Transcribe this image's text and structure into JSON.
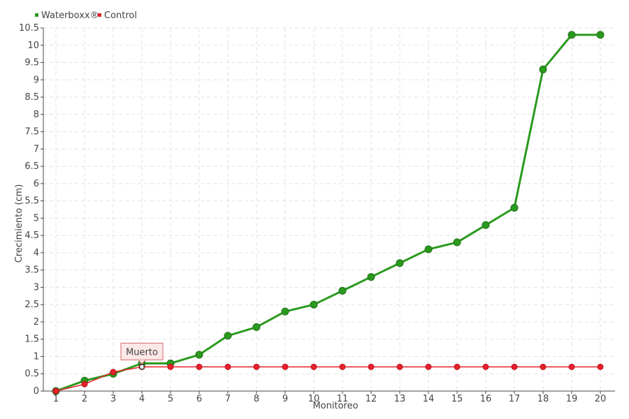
{
  "chart_data": {
    "type": "line",
    "xlabel": "Monitoreo",
    "ylabel": "Crecimiento (cm)",
    "x": [
      1,
      2,
      3,
      4,
      5,
      6,
      7,
      8,
      9,
      10,
      11,
      12,
      13,
      14,
      15,
      16,
      17,
      18,
      19,
      20
    ],
    "xticks": [
      "1",
      "2",
      "3",
      "4",
      "5",
      "6",
      "7",
      "8",
      "9",
      "10",
      "11",
      "12",
      "13",
      "14",
      "15",
      "16",
      "17",
      "18",
      "19",
      "20"
    ],
    "yticks": [
      "0",
      "0.5",
      "1",
      "1.5",
      "2",
      "2.5",
      "3",
      "3.5",
      "4",
      "4.5",
      "5",
      "5.5",
      "6",
      "6.5",
      "7",
      "7.5",
      "8",
      "8.5",
      "9",
      "9.5",
      "10",
      "10.5"
    ],
    "ylim": [
      0,
      10.5
    ],
    "grid": true,
    "legend_position": "top-left",
    "series": [
      {
        "name": "Waterboxx®",
        "color": "#2a9a1e",
        "values": [
          0,
          0.3,
          0.5,
          0.8,
          0.8,
          1.05,
          1.6,
          1.85,
          2.3,
          2.5,
          2.9,
          3.3,
          3.7,
          4.1,
          4.3,
          4.8,
          5.3,
          9.3,
          10.3,
          10.3
        ]
      },
      {
        "name": "Control",
        "color": "#e8202a",
        "values": [
          0,
          0.2,
          0.55,
          0.7,
          0.7,
          0.7,
          0.7,
          0.7,
          0.7,
          0.7,
          0.7,
          0.7,
          0.7,
          0.7,
          0.7,
          0.7,
          0.7,
          0.7,
          0.7,
          0.7
        ]
      }
    ],
    "annotations": [
      {
        "text": "Muerto",
        "series": "Control",
        "x": 4,
        "y": 0.7
      }
    ]
  }
}
